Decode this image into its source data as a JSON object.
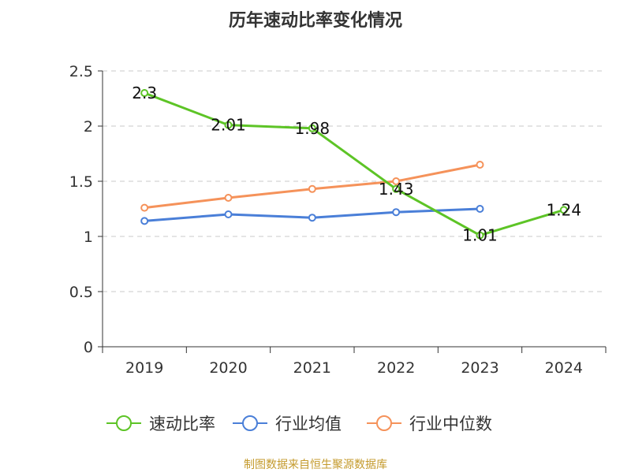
{
  "chart_data": {
    "type": "line",
    "title": "历年速动比率变化情况",
    "xlabel": "",
    "ylabel": "",
    "categories": [
      "2019",
      "2020",
      "2021",
      "2022",
      "2023",
      "2024"
    ],
    "y_ticks": [
      "0",
      "0.5",
      "1",
      "1.5",
      "2",
      "2.5"
    ],
    "ylim": [
      0,
      2.5
    ],
    "grid": "horizontal dashed",
    "legend_position": "bottom",
    "series": [
      {
        "name": "速动比率",
        "color": "#5dc426",
        "values": [
          2.3,
          2.01,
          1.98,
          1.43,
          1.01,
          1.24
        ],
        "labels": [
          "2.3",
          "2.01",
          "1.98",
          "1.43",
          "1.01",
          "1.24"
        ]
      },
      {
        "name": "行业均值",
        "color": "#4a7fd8",
        "values": [
          1.14,
          1.2,
          1.17,
          1.22,
          1.25,
          null
        ]
      },
      {
        "name": "行业中位数",
        "color": "#f5925a",
        "values": [
          1.26,
          1.35,
          1.43,
          1.5,
          1.65,
          null
        ]
      }
    ]
  },
  "footer": {
    "source_text": "制图数据来自恒生聚源数据库",
    "source_color": "#c49a2c"
  }
}
